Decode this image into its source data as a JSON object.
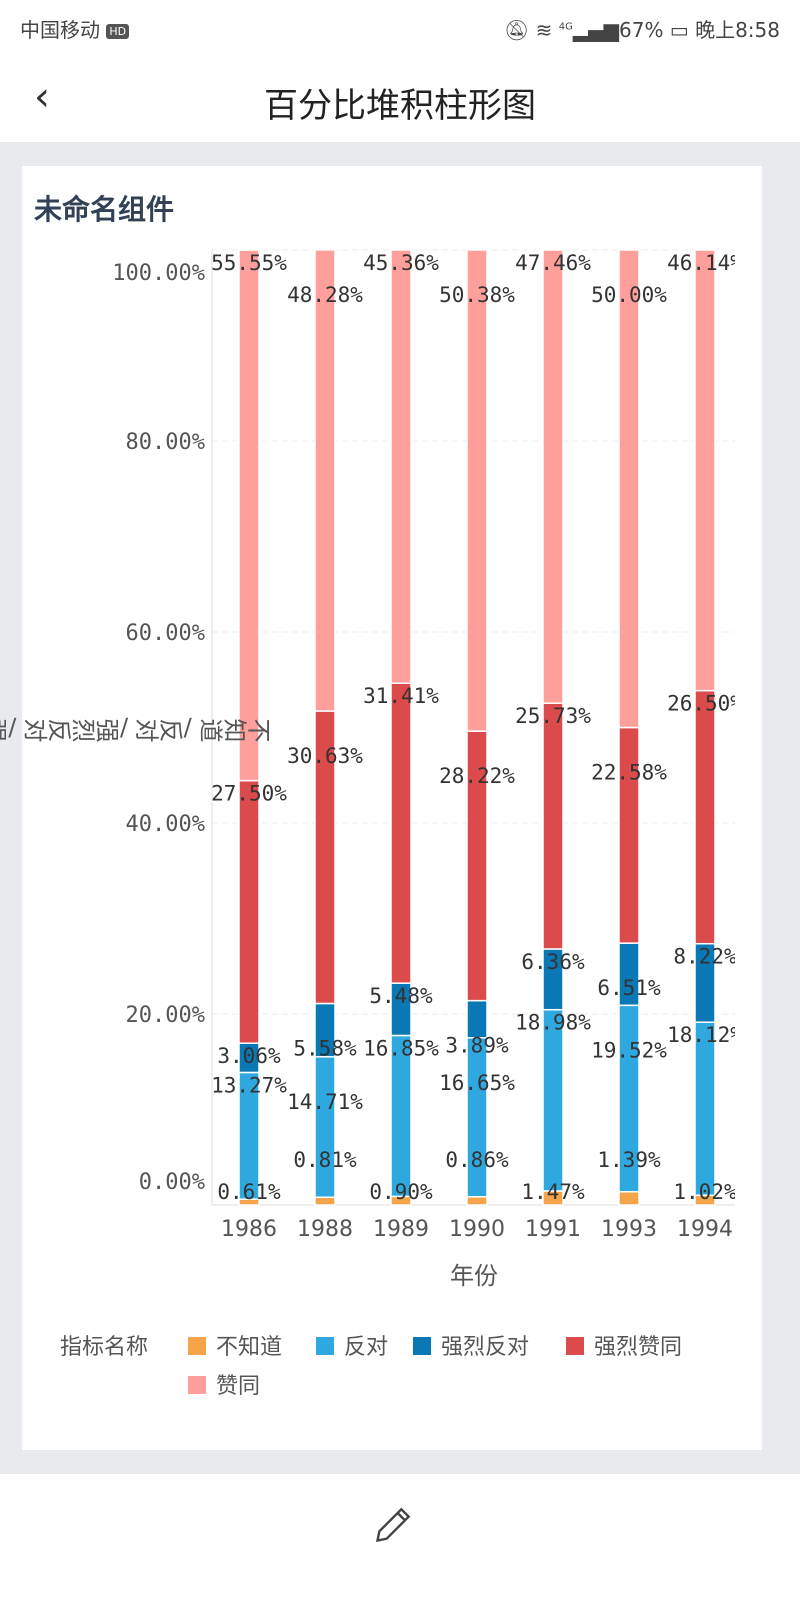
{
  "status_bar": {
    "carrier": "中国移动",
    "hd": "HD",
    "network": "4G",
    "battery": "67%",
    "time": "晚上8:58"
  },
  "header": {
    "title": "百分比堆积柱形图",
    "back_icon": "chevron-left-icon"
  },
  "card": {
    "title": "未命名组件"
  },
  "footer": {
    "edit_icon": "pencil-icon"
  },
  "chart_data": {
    "type": "bar",
    "stacked": "percent",
    "categories": [
      "1986",
      "1988",
      "1989",
      "1990",
      "1991",
      "1993",
      "1994"
    ],
    "xlabel": "年份",
    "ylabel": "不知道 /反对 /强烈反对 /强烈赞同 /赞同",
    "ylim": [
      0,
      100
    ],
    "yticks": [
      "0.00%",
      "20.00%",
      "40.00%",
      "60.00%",
      "80.00%",
      "100.00%"
    ],
    "legend_title": "指标名称",
    "legend_position": "bottom",
    "series": [
      {
        "name": "不知道",
        "color": "#f5a449",
        "values": [
          0.61,
          0.81,
          0.9,
          0.86,
          1.47,
          1.39,
          1.02
        ]
      },
      {
        "name": "反对",
        "color": "#2fa8e0",
        "values": [
          13.27,
          14.71,
          16.85,
          16.65,
          18.98,
          19.52,
          18.12
        ]
      },
      {
        "name": "强烈反对",
        "color": "#0a78b5",
        "values": [
          3.06,
          5.58,
          5.48,
          3.89,
          6.36,
          6.51,
          8.22
        ]
      },
      {
        "name": "强烈赞同",
        "color": "#dc4b4b",
        "values": [
          27.5,
          30.63,
          31.41,
          28.22,
          25.73,
          22.58,
          26.5
        ]
      },
      {
        "name": "赞同",
        "color": "#ff9f9c",
        "values": [
          55.55,
          48.28,
          45.36,
          50.38,
          47.46,
          50.0,
          46.14
        ]
      }
    ]
  }
}
